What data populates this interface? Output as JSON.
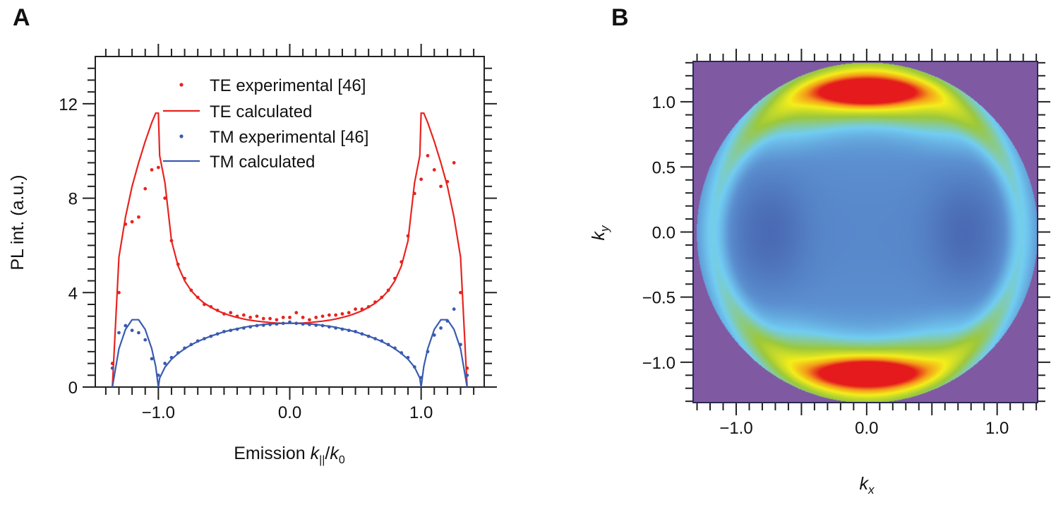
{
  "panels": {
    "a": "A",
    "b": "B"
  },
  "chart_data": [
    {
      "type": "line",
      "panel": "A",
      "xlabel": {
        "prefix": "Emission ",
        "k": "k",
        "sub1": "||",
        "slash": "/",
        "k0": "k",
        "sub2": "0"
      },
      "ylabel": "PL int. (a.u.)",
      "xlim": [
        -1.48,
        1.48
      ],
      "ylim": [
        0,
        14
      ],
      "xticks": [
        -1.0,
        0.0,
        1.0
      ],
      "xtick_labels": [
        "−1.0",
        "0.0",
        "1.0"
      ],
      "yticks": [
        0,
        4,
        8,
        12
      ],
      "ytick_labels": [
        "0",
        "4",
        "8",
        "12"
      ],
      "grid": false,
      "legend": "top-center",
      "colors": {
        "TE": "#e8231f",
        "TM": "#3a5bb0"
      },
      "series": [
        {
          "name": "TE experimental [46]",
          "style": "dots",
          "color": "#e8231f",
          "x": [
            -1.35,
            -1.3,
            -1.25,
            -1.2,
            -1.15,
            -1.1,
            -1.05,
            -1.0,
            -0.95,
            -0.9,
            -0.85,
            -0.8,
            -0.75,
            -0.7,
            -0.65,
            -0.6,
            -0.55,
            -0.5,
            -0.45,
            -0.4,
            -0.35,
            -0.3,
            -0.25,
            -0.2,
            -0.15,
            -0.1,
            -0.05,
            0,
            0.05,
            0.1,
            0.15,
            0.2,
            0.25,
            0.3,
            0.35,
            0.4,
            0.45,
            0.5,
            0.55,
            0.6,
            0.65,
            0.7,
            0.75,
            0.8,
            0.85,
            0.9,
            0.95,
            1.0,
            1.05,
            1.1,
            1.15,
            1.2,
            1.25,
            1.3,
            1.35
          ],
          "y": [
            1.0,
            4.0,
            6.9,
            7.0,
            7.2,
            8.4,
            9.2,
            9.3,
            8.0,
            6.2,
            5.2,
            4.6,
            4.1,
            3.8,
            3.5,
            3.4,
            3.25,
            3.1,
            3.15,
            3.0,
            3.05,
            2.95,
            3.0,
            2.9,
            2.9,
            2.85,
            2.95,
            2.95,
            3.15,
            2.95,
            2.85,
            2.95,
            3.0,
            3.05,
            3.05,
            3.1,
            3.15,
            3.3,
            3.3,
            3.4,
            3.6,
            3.8,
            4.1,
            4.6,
            5.3,
            6.4,
            8.2,
            8.8,
            9.8,
            9.2,
            8.5,
            8.7,
            9.5,
            4.0,
            0.8
          ]
        },
        {
          "name": "TE calculated",
          "style": "line",
          "color": "#e8231f",
          "x": [
            -1.35,
            -1.3,
            -1.25,
            -1.2,
            -1.15,
            -1.1,
            -1.05,
            -1.02,
            -1.0,
            -0.99,
            -0.95,
            -0.9,
            -0.85,
            -0.8,
            -0.75,
            -0.7,
            -0.65,
            -0.6,
            -0.55,
            -0.5,
            -0.45,
            -0.4,
            -0.35,
            -0.3,
            -0.25,
            -0.2,
            -0.15,
            -0.1,
            -0.05,
            0,
            0.05,
            0.1,
            0.15,
            0.2,
            0.25,
            0.3,
            0.35,
            0.4,
            0.45,
            0.5,
            0.55,
            0.6,
            0.65,
            0.7,
            0.75,
            0.8,
            0.85,
            0.9,
            0.95,
            0.99,
            1.0,
            1.02,
            1.05,
            1.1,
            1.15,
            1.2,
            1.25,
            1.3,
            1.35
          ],
          "y": [
            0,
            5.5,
            7.2,
            8.5,
            9.5,
            10.4,
            11.2,
            11.6,
            11.6,
            9.8,
            8.65,
            6.19,
            5.13,
            4.5,
            4.08,
            3.78,
            3.55,
            3.38,
            3.23,
            3.12,
            3.02,
            2.95,
            2.88,
            2.83,
            2.79,
            2.76,
            2.73,
            2.71,
            2.7,
            2.7,
            2.7,
            2.71,
            2.73,
            2.76,
            2.79,
            2.83,
            2.88,
            2.95,
            3.02,
            3.12,
            3.23,
            3.38,
            3.55,
            3.78,
            4.08,
            4.5,
            5.13,
            6.19,
            8.65,
            9.8,
            11.6,
            11.6,
            11.2,
            10.4,
            9.5,
            8.5,
            7.2,
            5.5,
            0
          ]
        },
        {
          "name": "TM experimental [46]",
          "style": "dots",
          "color": "#3a5bb0",
          "x": [
            -1.35,
            -1.3,
            -1.25,
            -1.2,
            -1.15,
            -1.1,
            -1.05,
            -1.0,
            -0.95,
            -0.9,
            -0.85,
            -0.8,
            -0.75,
            -0.7,
            -0.65,
            -0.6,
            -0.55,
            -0.5,
            -0.45,
            -0.4,
            -0.35,
            -0.3,
            -0.25,
            -0.2,
            -0.15,
            -0.1,
            -0.05,
            0,
            0.05,
            0.1,
            0.15,
            0.2,
            0.25,
            0.3,
            0.35,
            0.4,
            0.45,
            0.5,
            0.55,
            0.6,
            0.65,
            0.7,
            0.75,
            0.8,
            0.85,
            0.9,
            0.95,
            1.0,
            1.05,
            1.1,
            1.15,
            1.2,
            1.25,
            1.3,
            1.35
          ],
          "y": [
            0.8,
            2.3,
            2.6,
            2.4,
            2.3,
            2.0,
            1.2,
            0.5,
            1.0,
            1.25,
            1.45,
            1.65,
            1.8,
            1.95,
            2.05,
            2.15,
            2.25,
            2.35,
            2.4,
            2.45,
            2.5,
            2.55,
            2.6,
            2.62,
            2.65,
            2.67,
            2.7,
            2.75,
            2.7,
            2.67,
            2.65,
            2.62,
            2.6,
            2.55,
            2.5,
            2.45,
            2.4,
            2.35,
            2.25,
            2.15,
            2.05,
            1.95,
            1.8,
            1.65,
            1.45,
            1.25,
            0.85,
            0.4,
            1.5,
            2.2,
            2.5,
            2.8,
            3.3,
            1.8,
            0.5
          ]
        },
        {
          "name": "TM calculated",
          "style": "line",
          "color": "#3a5bb0",
          "x": [
            -1.35,
            -1.3,
            -1.25,
            -1.2,
            -1.15,
            -1.1,
            -1.05,
            -1.02,
            -1.0,
            -0.99,
            -0.95,
            -0.9,
            -0.85,
            -0.8,
            -0.75,
            -0.7,
            -0.65,
            -0.6,
            -0.55,
            -0.5,
            -0.45,
            -0.4,
            -0.35,
            -0.3,
            -0.25,
            -0.2,
            -0.15,
            -0.1,
            -0.05,
            0,
            0.05,
            0.1,
            0.15,
            0.2,
            0.25,
            0.3,
            0.35,
            0.4,
            0.45,
            0.5,
            0.55,
            0.6,
            0.65,
            0.7,
            0.75,
            0.8,
            0.85,
            0.9,
            0.95,
            0.99,
            1.0,
            1.02,
            1.05,
            1.1,
            1.15,
            1.2,
            1.25,
            1.3,
            1.35
          ],
          "y": [
            0,
            1.62,
            2.44,
            2.85,
            2.85,
            2.44,
            1.62,
            0.87,
            0,
            0.38,
            0.84,
            1.18,
            1.42,
            1.62,
            1.79,
            1.93,
            2.05,
            2.16,
            2.25,
            2.34,
            2.41,
            2.47,
            2.53,
            2.58,
            2.61,
            2.65,
            2.67,
            2.69,
            2.7,
            2.7,
            2.7,
            2.69,
            2.67,
            2.65,
            2.61,
            2.58,
            2.53,
            2.47,
            2.41,
            2.34,
            2.25,
            2.16,
            2.05,
            1.93,
            1.79,
            1.62,
            1.42,
            1.18,
            0.84,
            0.38,
            0,
            0.87,
            1.62,
            2.44,
            2.85,
            2.85,
            2.44,
            1.62,
            0
          ]
        }
      ]
    },
    {
      "type": "heatmap",
      "panel": "B",
      "xlabel": {
        "k": "k",
        "sub": "x"
      },
      "ylabel": {
        "k": "k",
        "sub": "y"
      },
      "xlim": [
        -1.33,
        1.31
      ],
      "ylim": [
        -1.31,
        1.31
      ],
      "xticks": [
        -1.0,
        0.0,
        1.0
      ],
      "xtick_labels": [
        "−1.0",
        "0.0",
        "1.0"
      ],
      "yticks": [
        1.0,
        0.5,
        0.0,
        -0.5,
        -1.0
      ],
      "ytick_labels": [
        "1.0",
        "0.5",
        "0.0",
        "−0.5",
        "−1.0"
      ],
      "grid": false,
      "colorbar": false,
      "emission_disk_radius": 1.31,
      "maxima": [
        {
          "kx": 0.0,
          "ky": 1.07
        },
        {
          "kx": 0.0,
          "ky": -1.07
        }
      ],
      "minima": [
        {
          "kx": -0.8,
          "ky": 0.0
        },
        {
          "kx": 0.8,
          "ky": 0.0
        }
      ],
      "background_color": "#7f5aa3",
      "colormap": [
        "#3d4f9f",
        "#5b8fd0",
        "#72cdf2",
        "#9cc83a",
        "#f4ee1a",
        "#f39a1a",
        "#e41a1c"
      ]
    }
  ]
}
